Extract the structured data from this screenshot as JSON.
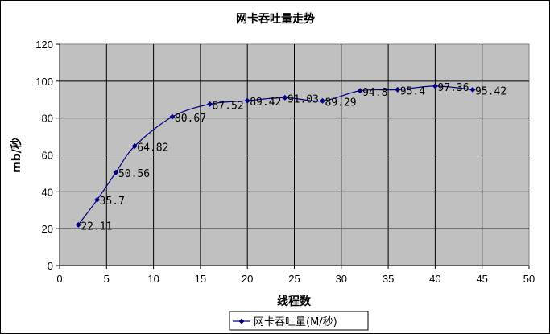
{
  "chart_data": {
    "type": "line",
    "title": "网卡吞吐量走势",
    "xlabel": "线程数",
    "ylabel": "mb/秒",
    "xlim": [
      0,
      50
    ],
    "ylim": [
      0,
      120
    ],
    "x_ticks": [
      0,
      5,
      10,
      15,
      20,
      25,
      30,
      35,
      40,
      45,
      50
    ],
    "y_ticks": [
      0,
      20,
      40,
      60,
      80,
      100,
      120
    ],
    "grid": true,
    "plot_background": "#c0c0c0",
    "legend_position": "bottom",
    "series": [
      {
        "name": "网卡吞吐量(M/秒)",
        "color": "#000080",
        "marker": "diamond",
        "x": [
          2,
          4,
          6,
          8,
          12,
          16,
          20,
          24,
          28,
          32,
          36,
          40,
          44
        ],
        "values": [
          22.11,
          35.7,
          50.56,
          64.82,
          80.67,
          87.52,
          89.42,
          91.03,
          89.29,
          94.8,
          95.4,
          97.36,
          95.42
        ],
        "labels": [
          "22.11",
          "35.7",
          "50.56",
          "64.82",
          "80.67",
          "87.52",
          "89.42",
          "91.03",
          "89.29",
          "94.8",
          "95.4",
          "97.36",
          "95.42"
        ]
      }
    ]
  }
}
